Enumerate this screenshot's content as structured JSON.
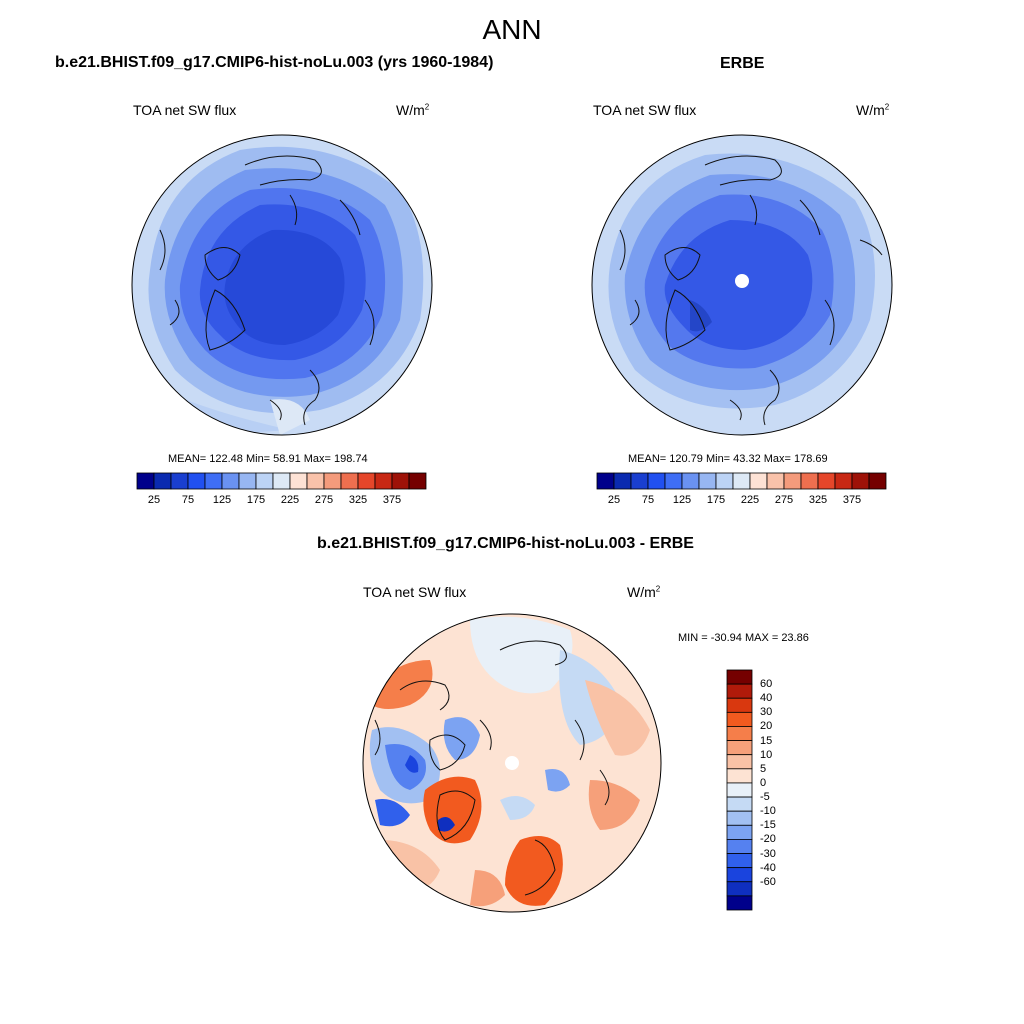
{
  "title": "ANN",
  "panels": [
    {
      "heading": "b.e21.BHIST.f09_g17.CMIP6-hist-noLu.003 (yrs 1960-1984)",
      "variable": "TOA net SW flux",
      "units_base": "W/m",
      "units_exp": "2",
      "stats": "MEAN= 122.48  Min=  58.91  Max= 198.74"
    },
    {
      "heading": "ERBE",
      "variable": "TOA net SW flux",
      "units_base": "W/m",
      "units_exp": "2",
      "stats": "MEAN= 120.79  Min=  43.32  Max= 178.69"
    },
    {
      "heading": "b.e21.BHIST.f09_g17.CMIP6-hist-noLu.003 - ERBE",
      "variable": "TOA net SW flux",
      "units_base": "W/m",
      "units_exp": "2",
      "stats": "MIN = -30.94 MAX =  23.86"
    }
  ],
  "colorbar_abs": {
    "colors": [
      "#00008b",
      "#0a2ab0",
      "#1a3fd0",
      "#2150f0",
      "#3f6ef5",
      "#6a92f2",
      "#97b6f2",
      "#bcd3f5",
      "#dde9f6",
      "#fde2d5",
      "#f9c2aa",
      "#f49b7c",
      "#ee6f4f",
      "#e5462a",
      "#c82814",
      "#9e1208",
      "#750000"
    ],
    "ticks": [
      "25",
      "75",
      "125",
      "175",
      "225",
      "275",
      "325",
      "375"
    ]
  },
  "colorbar_diff": {
    "colors": [
      "#750000",
      "#b01a0a",
      "#d9380f",
      "#f25a1f",
      "#f57e4a",
      "#f6a07a",
      "#f9c2a6",
      "#fde3d3",
      "#e8f0f8",
      "#c5daf4",
      "#a2c0f2",
      "#7ca3f2",
      "#5581f0",
      "#3060ec",
      "#1a44de",
      "#0f2fbf",
      "#00008b"
    ],
    "ticks": [
      "60",
      "40",
      "30",
      "20",
      "15",
      "10",
      "5",
      "0",
      "-5",
      "-10",
      "-15",
      "-20",
      "-30",
      "-40",
      "-60"
    ]
  }
}
